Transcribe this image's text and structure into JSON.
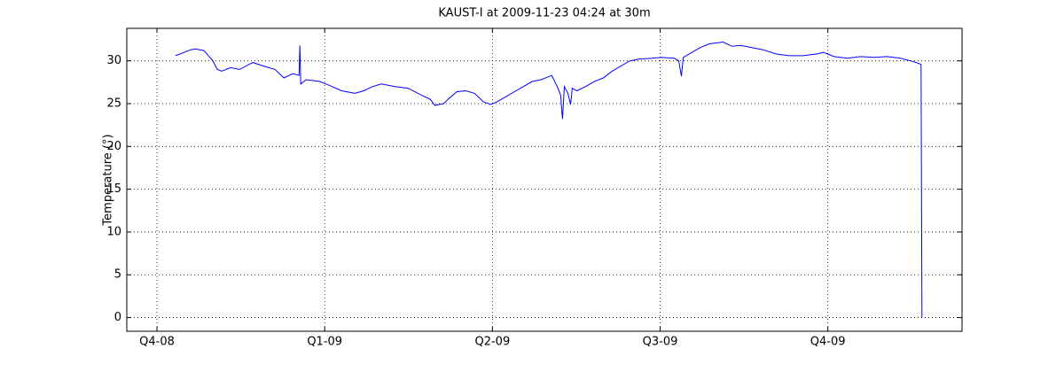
{
  "chart_data": {
    "type": "line",
    "title": "KAUST-I at 2009-11-23 04:24 at 30m",
    "y_label": "Temperature (°)",
    "x": [
      0.111,
      0.201,
      0.228,
      0.28,
      0.333,
      0.36,
      0.386,
      0.439,
      0.492,
      0.571,
      0.651,
      0.704,
      0.757,
      0.81,
      0.847,
      0.852,
      0.857,
      0.889,
      0.968,
      1.021,
      1.101,
      1.18,
      1.233,
      1.286,
      1.339,
      1.418,
      1.497,
      1.577,
      1.63,
      1.656,
      1.709,
      1.735,
      1.788,
      1.841,
      1.894,
      1.947,
      1.989,
      2.026,
      2.079,
      2.132,
      2.185,
      2.238,
      2.291,
      2.354,
      2.386,
      2.407,
      2.418,
      2.429,
      2.45,
      2.466,
      2.476,
      2.503,
      2.556,
      2.608,
      2.661,
      2.714,
      2.767,
      2.82,
      2.873,
      2.952,
      3.005,
      3.085,
      3.111,
      3.127,
      3.138,
      3.19,
      3.243,
      3.296,
      3.376,
      3.429,
      3.481,
      3.561,
      3.614,
      3.693,
      3.772,
      3.852,
      3.931,
      3.974,
      4.037,
      4.116,
      4.196,
      4.275,
      4.354,
      4.434,
      4.513,
      4.556,
      4.561
    ],
    "series": [
      {
        "name": "Temperature",
        "color": "#0000ff",
        "values": [
          30.6,
          31.3,
          31.4,
          31.2,
          30,
          29,
          28.8,
          29.2,
          29,
          29.8,
          29.3,
          29,
          28,
          28.5,
          28.3,
          31.8,
          27.3,
          27.8,
          27.6,
          27.2,
          26.5,
          26.2,
          26.5,
          27,
          27.3,
          27,
          26.8,
          26,
          25.5,
          24.8,
          25,
          25.5,
          26.4,
          26.5,
          26.2,
          25.2,
          24.9,
          25.2,
          25.8,
          26.4,
          27,
          27.6,
          27.8,
          28.3,
          27,
          26,
          23.2,
          27,
          26.2,
          24.9,
          26.8,
          26.5,
          27,
          27.6,
          28,
          28.8,
          29.4,
          30,
          30.2,
          30.3,
          30.4,
          30.3,
          30,
          28.2,
          30.4,
          31,
          31.6,
          32,
          32.2,
          31.7,
          31.8,
          31.5,
          31.3,
          30.8,
          30.6,
          30.6,
          30.8,
          31,
          30.5,
          30.3,
          30.5,
          30.4,
          30.5,
          30.3,
          29.9,
          29.6,
          0
        ]
      }
    ],
    "xlim": [
      -0.18,
      4.8
    ],
    "xticks": [
      {
        "value": 0,
        "label": "Q4-08"
      },
      {
        "value": 1,
        "label": "Q1-09"
      },
      {
        "value": 2,
        "label": "Q2-09"
      },
      {
        "value": 3,
        "label": "Q3-09"
      },
      {
        "value": 4,
        "label": "Q4-09"
      }
    ],
    "ylim": [
      -1.6,
      33.8
    ],
    "yticks": [
      0,
      5,
      10,
      15,
      20,
      25,
      30
    ],
    "grid": true
  }
}
